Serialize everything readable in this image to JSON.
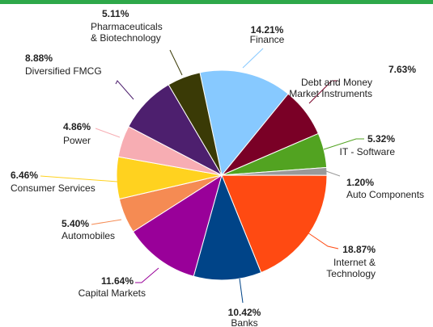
{
  "chart_data": {
    "type": "pie",
    "categories": [
      "Finance",
      "Debt and Money\nMarket Instruments",
      "IT - Software",
      "Auto Components",
      "Internet &\nTechnology",
      "Banks",
      "Capital Markets",
      "Automobiles",
      "Consumer Services",
      "Power",
      "Diversified FMCG",
      "Pharmaceuticals\n& Biotechnology"
    ],
    "values": [
      14.21,
      7.63,
      5.32,
      1.2,
      18.87,
      10.42,
      11.64,
      5.4,
      6.46,
      4.86,
      8.88,
      5.11
    ],
    "value_labels": [
      "14.21%",
      "7.63%",
      "5.32%",
      "1.20%",
      "18.87%",
      "10.42%",
      "11.64%",
      "5.40%",
      "6.46%",
      "4.86%",
      "8.88%",
      "5.11%"
    ],
    "colors": [
      "#87c9ff",
      "#7a0026",
      "#52a321",
      "#999999",
      "#ff4a12",
      "#004488",
      "#990099",
      "#f58b53",
      "#ffd21f",
      "#f7adb3",
      "#4d1f6e",
      "#3a3a06"
    ]
  }
}
